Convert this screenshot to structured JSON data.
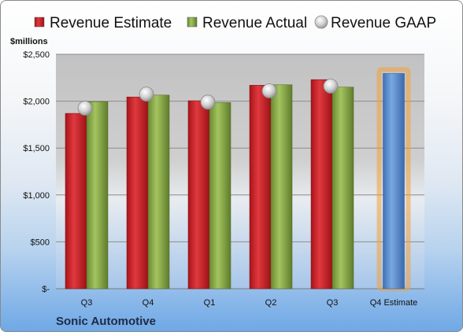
{
  "chart_data": {
    "type": "bar",
    "ylabel": "$millions",
    "ylim": [
      0,
      2500
    ],
    "yticks": [
      0,
      500,
      1000,
      1500,
      2000,
      2500
    ],
    "ytick_labels": [
      "$-",
      "$500",
      "$1,000",
      "$1,500",
      "$2,000",
      "$2,500"
    ],
    "categories": [
      "Q3",
      "Q4",
      "Q1",
      "Q2",
      "Q3",
      "Q4 Estimate"
    ],
    "series": [
      {
        "name": "Revenue Estimate",
        "kind": "bar",
        "color": "#d0262b",
        "values": [
          1870,
          2045,
          2005,
          2170,
          2230,
          null
        ]
      },
      {
        "name": "Revenue Actual",
        "kind": "bar",
        "color": "#8cb04c",
        "values": [
          1995,
          2065,
          1985,
          2175,
          2150,
          null
        ]
      },
      {
        "name": "Revenue GAAP",
        "kind": "marker",
        "color": "#c0c0c0",
        "values": [
          1925,
          2075,
          1990,
          2110,
          2160,
          null
        ]
      },
      {
        "name": "",
        "kind": "bar",
        "color": "#5b8fd0",
        "highlight": "#f2a03d",
        "values": [
          null,
          null,
          null,
          null,
          null,
          2295
        ]
      }
    ],
    "grid": true,
    "legend": "top",
    "footer": "Sonic Automotive"
  }
}
